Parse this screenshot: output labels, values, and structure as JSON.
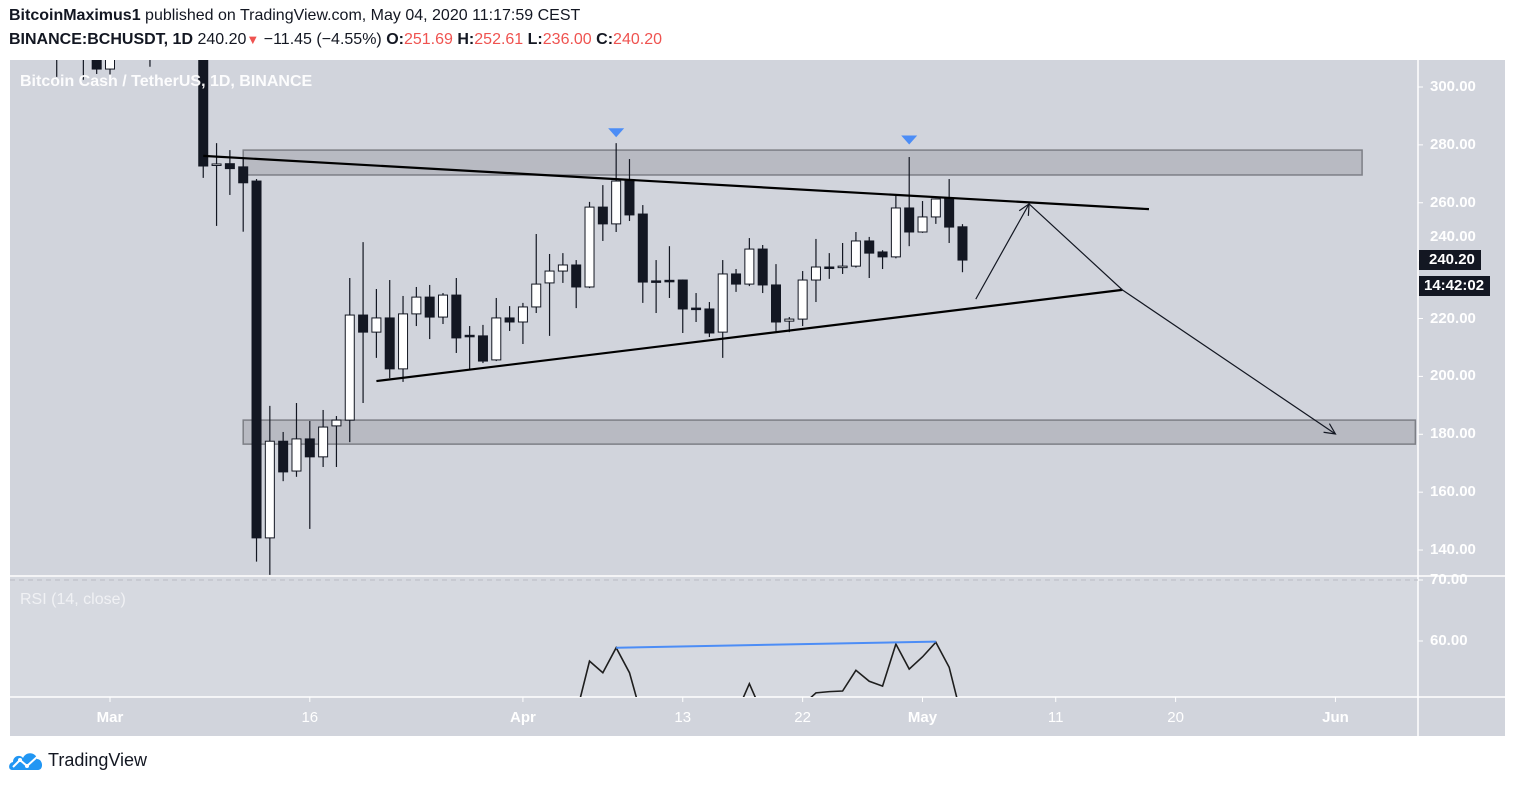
{
  "header": {
    "author": "BitcoinMaximus1",
    "published": "published on TradingView.com, May 04, 2020 11:17:59 CEST",
    "symbol": "BINANCE:BCHUSDT, 1D",
    "last": "240.20",
    "change": "−11.45 (−4.55%)",
    "o_label": "O:",
    "o": "251.69",
    "h_label": "H:",
    "h": "252.61",
    "l_label": "L:",
    "l": "236.00",
    "c_label": "C:",
    "c": "240.20",
    "down_icon": "triangle-down-icon"
  },
  "pane_title": "Bitcoin Cash / TetherUS, 1D, BINANCE",
  "rsi_title": "RSI (14, close)",
  "price_tag": "240.20",
  "countdown": "14:42:02",
  "brand": "TradingView",
  "colors": {
    "background": "#d1d4dc",
    "bull": "#ffffff",
    "bear": "#131722",
    "marker": "#4c8df6",
    "zone": "#b8bac2",
    "rsi_trend": "#4c8df6",
    "price_tag": "#131722",
    "header_value": "#ef5350"
  },
  "chart_data": [
    {
      "type": "candlestick",
      "title": "Bitcoin Cash / TetherUS, 1D, BINANCE",
      "ylim": [
        133,
        309
      ],
      "yticks": [
        "300.00",
        "280.00",
        "260.00",
        "240.00",
        "220.00",
        "200.00",
        "180.00",
        "160.00",
        "140.00"
      ],
      "ytick_values": [
        300,
        280,
        260,
        240,
        220,
        200,
        180,
        160,
        140
      ],
      "xticks": [
        {
          "label": "Mar",
          "date": "2020-03-01",
          "bold": true
        },
        {
          "label": "16",
          "date": "2020-03-16"
        },
        {
          "label": "Apr",
          "date": "2020-04-01",
          "bold": true
        },
        {
          "label": "13",
          "date": "2020-04-13"
        },
        {
          "label": "22",
          "date": "2020-04-22"
        },
        {
          "label": "May",
          "date": "2020-05-01",
          "bold": true
        },
        {
          "label": "11",
          "date": "2020-05-11"
        },
        {
          "label": "20",
          "date": "2020-05-20"
        },
        {
          "label": "Jun",
          "date": "2020-06-01",
          "bold": true
        }
      ],
      "candles_columns": [
        "date",
        "open",
        "high",
        "low",
        "close"
      ],
      "candles": [
        [
          "2020-02-26",
          318,
          330,
          303.5,
          316
        ],
        [
          "2020-02-28",
          316,
          326,
          302.5,
          314
        ],
        [
          "2020-02-29",
          318,
          324,
          304.5,
          306.2
        ],
        [
          "2020-03-01",
          306.2,
          324,
          304.3,
          320
        ],
        [
          "2020-03-04",
          318,
          326,
          307,
          316
        ],
        [
          "2020-03-08",
          312,
          318,
          268.6,
          272.7
        ],
        [
          "2020-03-09",
          273.4,
          280.6,
          252,
          273.4
        ],
        [
          "2020-03-10",
          273.5,
          278.2,
          262.7,
          271.8
        ],
        [
          "2020-03-11",
          272.4,
          275.6,
          250,
          266.9
        ],
        [
          "2020-03-12",
          267.5,
          268.2,
          136,
          144.2
        ],
        [
          "2020-03-13",
          144.2,
          189.8,
          131.4,
          177.6
        ],
        [
          "2020-03-14",
          177.6,
          180.8,
          163.8,
          167
        ],
        [
          "2020-03-15",
          167.3,
          190.8,
          165.3,
          178.4
        ],
        [
          "2020-03-16",
          178.4,
          184.6,
          147.3,
          172.2
        ],
        [
          "2020-03-17",
          172.2,
          188.4,
          168.7,
          182.5
        ],
        [
          "2020-03-18",
          182.9,
          186.3,
          168.7,
          184.9
        ],
        [
          "2020-03-19",
          184.9,
          234,
          177.3,
          221.2
        ],
        [
          "2020-03-20",
          221.2,
          246.4,
          190.8,
          215.3
        ],
        [
          "2020-03-21",
          215.3,
          230.2,
          206.4,
          220.2
        ],
        [
          "2020-03-22",
          220.2,
          233.3,
          199.4,
          202.6
        ],
        [
          "2020-03-23",
          202.6,
          227.8,
          198.1,
          221.6
        ],
        [
          "2020-03-24",
          221.6,
          230.9,
          217.4,
          227.4
        ],
        [
          "2020-03-25",
          227.4,
          231.6,
          212.9,
          220.5
        ],
        [
          "2020-03-26",
          220.5,
          228.8,
          218.1,
          228.1
        ],
        [
          "2020-03-27",
          228.1,
          234,
          208.1,
          213.3
        ],
        [
          "2020-03-28",
          214.2,
          217.4,
          202.2,
          214
        ],
        [
          "2020-03-29",
          214,
          217.8,
          204.6,
          205.3
        ],
        [
          "2020-03-30",
          205.7,
          227.1,
          205.3,
          220.2
        ],
        [
          "2020-03-31",
          220.2,
          224.3,
          215.7,
          218.8
        ],
        [
          "2020-04-01",
          218.8,
          225.4,
          211.2,
          224
        ],
        [
          "2020-04-02",
          224,
          249.2,
          221.9,
          231.9
        ],
        [
          "2020-04-03",
          232.3,
          242.3,
          214,
          236.4
        ],
        [
          "2020-04-04",
          236.4,
          242.6,
          232.3,
          238.5
        ],
        [
          "2020-04-05",
          238.5,
          240.2,
          223.6,
          230.9
        ],
        [
          "2020-04-06",
          230.9,
          260.3,
          230.5,
          258.5
        ],
        [
          "2020-04-07",
          258.5,
          266.1,
          246.8,
          252.7
        ],
        [
          "2020-04-08",
          252.7,
          280.6,
          249.9,
          267.5
        ],
        [
          "2020-04-09",
          267.5,
          275.1,
          253.7,
          255.8
        ],
        [
          "2020-04-10",
          256.1,
          259.2,
          225.4,
          232.6
        ],
        [
          "2020-04-11",
          233,
          240.2,
          221.9,
          232.8
        ],
        [
          "2020-04-12",
          233.2,
          245,
          227.1,
          233
        ],
        [
          "2020-04-13",
          233.3,
          233.5,
          215,
          223.3
        ],
        [
          "2020-04-14",
          223.6,
          228.8,
          218.8,
          223.4
        ],
        [
          "2020-04-15",
          223.3,
          225.7,
          213.6,
          215
        ],
        [
          "2020-04-16",
          215.3,
          240.2,
          206.4,
          235.4
        ],
        [
          "2020-04-17",
          235.4,
          237.1,
          229.2,
          231.9
        ],
        [
          "2020-04-18",
          231.9,
          247.8,
          231.2,
          244
        ],
        [
          "2020-04-19",
          244,
          245.4,
          228.8,
          231.6
        ],
        [
          "2020-04-20",
          231.6,
          238.8,
          215.7,
          218.8
        ],
        [
          "2020-04-21",
          219.1,
          220.5,
          215.3,
          219.8
        ],
        [
          "2020-04-22",
          219.8,
          236.4,
          217.4,
          233.3
        ],
        [
          "2020-04-23",
          233.3,
          247.5,
          225.7,
          237.8
        ],
        [
          "2020-04-24",
          237.8,
          242.6,
          233.7,
          237.6
        ],
        [
          "2020-04-25",
          237.9,
          246.1,
          235.4,
          238.1
        ],
        [
          "2020-04-26",
          238.1,
          249.9,
          237.6,
          246.8
        ],
        [
          "2020-04-27",
          246.8,
          248.2,
          234,
          242.6
        ],
        [
          "2020-04-28",
          243,
          243.6,
          237.1,
          241.3
        ],
        [
          "2020-04-29",
          241.3,
          262.7,
          240.8,
          258.2
        ],
        [
          "2020-04-30",
          258.2,
          275.8,
          245,
          249.9
        ],
        [
          "2020-05-01",
          249.9,
          260.6,
          249.6,
          255.1
        ],
        [
          "2020-05-02",
          255.1,
          261.5,
          252.7,
          261.3
        ],
        [
          "2020-05-03",
          261.3,
          268.2,
          246.1,
          251.6
        ],
        [
          "2020-05-04",
          251.69,
          252.61,
          236.0,
          240.2
        ]
      ],
      "drawings": {
        "zones": [
          {
            "from": "2020-03-11",
            "to": "2020-06-03",
            "top": 278.2,
            "bottom": 269.6
          },
          {
            "from": "2020-03-11",
            "to": "2020-06-07",
            "top": 184.9,
            "bottom": 176.6
          }
        ],
        "trendlines": [
          {
            "from": [
              "2020-03-08",
              276.2
            ],
            "to": [
              "2020-05-18",
              257.8
            ]
          },
          {
            "from": [
              "2020-03-21",
              198.4
            ],
            "to": [
              "2020-05-16",
              229.9
            ]
          }
        ],
        "projection_path": [
          [
            "2020-05-05",
            226.7
          ],
          [
            "2020-05-09",
            259.6
          ],
          [
            "2020-05-16",
            229.9
          ],
          [
            "2020-06-01",
            180.1
          ]
        ],
        "markers": [
          {
            "date": "2020-04-08",
            "price": 284,
            "shape": "triangle-down"
          },
          {
            "date": "2020-04-30",
            "price": 281.5,
            "shape": "triangle-down"
          }
        ]
      }
    },
    {
      "type": "line",
      "title": "RSI (14, close)",
      "ylim": [
        50.8,
        71
      ],
      "yticks": [
        "70.00",
        "60.00"
      ],
      "ytick_values": [
        70,
        60
      ],
      "x": [
        "2020-04-05",
        "2020-04-06",
        "2020-04-07",
        "2020-04-08",
        "2020-04-09",
        "2020-04-10",
        "2020-04-17",
        "2020-04-18",
        "2020-04-19",
        "2020-04-22",
        "2020-04-23",
        "2020-04-24",
        "2020-04-25",
        "2020-04-26",
        "2020-04-27",
        "2020-04-28",
        "2020-04-29",
        "2020-04-30",
        "2020-05-01",
        "2020-05-02",
        "2020-05-03",
        "2020-05-04"
      ],
      "values": [
        48,
        56.7,
        54.8,
        58.9,
        54.8,
        47,
        48,
        53,
        48,
        49.5,
        51.5,
        51.7,
        51.8,
        55.2,
        53.4,
        52.6,
        59.5,
        55.4,
        57.4,
        59.8,
        55.7,
        47
      ],
      "trendline": {
        "from": [
          "2020-04-08",
          58.9
        ],
        "to": [
          "2020-05-02",
          59.9
        ]
      }
    }
  ]
}
